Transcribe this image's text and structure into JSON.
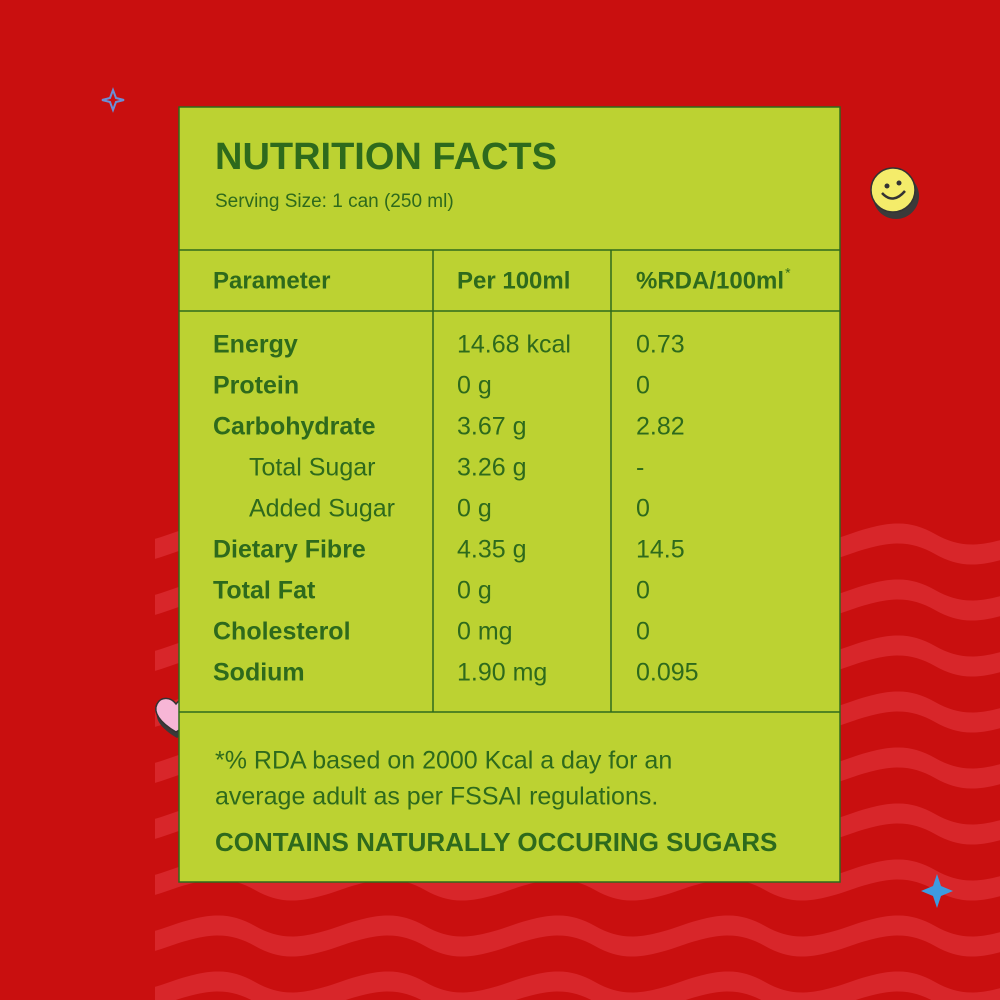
{
  "title": "NUTRITION FACTS",
  "serving_size": "Serving Size: 1 can (250 ml)",
  "table": {
    "header": [
      "Parameter",
      "Per 100ml",
      "%RDA/100ml"
    ],
    "header_mark": "*",
    "rows": [
      {
        "cells": [
          "Energy",
          "14.68 kcal",
          "0.73"
        ]
      },
      {
        "cells": [
          "Protein",
          "0 g",
          "0"
        ]
      },
      {
        "cells": [
          "Carbohydrate",
          "3.67 g",
          "2.82"
        ],
        "sub_rows": [
          [
            "Total Sugar",
            "3.26 g",
            "-"
          ],
          [
            "Added Sugar",
            "0 g",
            "0"
          ]
        ]
      },
      {
        "cells": [
          "Dietary Fibre",
          "4.35 g",
          "14.5"
        ]
      },
      {
        "cells": [
          "Total Fat",
          "0 g",
          "0"
        ]
      },
      {
        "cells": [
          "Cholesterol",
          "0 mg",
          "0"
        ]
      },
      {
        "cells": [
          "Sodium",
          "1.90 mg",
          "0.095"
        ]
      }
    ]
  },
  "footnote": [
    "*% RDA based on 2000 Kcal a day for an",
    "average adult as per FSSAI regulations."
  ],
  "notice": "CONTAINS NATURALLY OCCURING SUGARS"
}
